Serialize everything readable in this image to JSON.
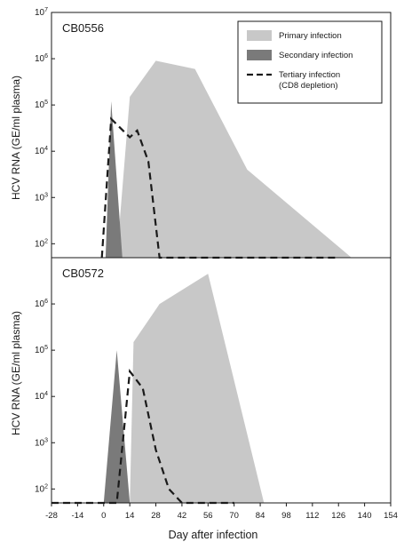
{
  "figure": {
    "xlabel": "Day after infection",
    "ylabel": "HCV RNA (GE/ml plasma)",
    "xticks": [
      -28,
      -14,
      0,
      14,
      28,
      42,
      56,
      70,
      84,
      98,
      112,
      126,
      140,
      154
    ],
    "colors": {
      "primary": "#c8c8c8",
      "secondary": "#7a7a7a",
      "tertiary": "#1a1a1a",
      "axis": "#1a1a1a"
    }
  },
  "chart_data": [
    {
      "type": "area",
      "panel_label": "CB0556",
      "xlabel": "Day after infection",
      "ylabel": "HCV RNA (GE/ml plasma)",
      "xlim": [
        -28,
        154
      ],
      "ylim": [
        50,
        10000000
      ],
      "yscale": "log",
      "yticks": [
        {
          "value": 100,
          "exp": "2"
        },
        {
          "value": 1000,
          "exp": "3"
        },
        {
          "value": 10000,
          "exp": "4"
        },
        {
          "value": 100000,
          "exp": "5"
        },
        {
          "value": 1000000,
          "exp": "6"
        },
        {
          "value": 10000000,
          "exp": "7"
        }
      ],
      "legend": {
        "placement": "top-right",
        "entries": [
          {
            "label": "Primary infection",
            "style": "primary"
          },
          {
            "label": "Secondary infection",
            "style": "secondary"
          },
          {
            "label": "Tertiary infection",
            "label2": "(CD8 depletion)",
            "style": "tertiary"
          }
        ]
      },
      "series": [
        {
          "name": "Primary infection",
          "style": "primary",
          "kind": "area",
          "x": [
            7,
            14,
            28,
            49,
            77,
            133
          ],
          "y": [
            50,
            150000,
            900000,
            600000,
            4000,
            50
          ]
        },
        {
          "name": "Secondary infection",
          "style": "secondary",
          "kind": "area",
          "x": [
            1,
            4,
            10
          ],
          "y": [
            50,
            120000,
            50
          ]
        },
        {
          "name": "Tertiary infection (CD8 depletion)",
          "style": "tertiary",
          "kind": "dashed",
          "x": [
            -1,
            4,
            14,
            18,
            24,
            30,
            36,
            42,
            56,
            70,
            84,
            98,
            112,
            126
          ],
          "y": [
            50,
            50000,
            20000,
            28000,
            6000,
            50,
            50,
            50,
            50,
            50,
            50,
            50,
            50,
            50
          ]
        }
      ]
    },
    {
      "type": "area",
      "panel_label": "CB0572",
      "xlabel": "Day after infection",
      "ylabel": "HCV RNA (GE/ml plasma)",
      "xlim": [
        -28,
        154
      ],
      "ylim": [
        50,
        10000000
      ],
      "yscale": "log",
      "yticks": [
        {
          "value": 100,
          "exp": "2"
        },
        {
          "value": 1000,
          "exp": "3"
        },
        {
          "value": 10000,
          "exp": "4"
        },
        {
          "value": 100000,
          "exp": "5"
        },
        {
          "value": 1000000,
          "exp": "6"
        }
      ],
      "series": [
        {
          "name": "Primary infection",
          "style": "primary",
          "kind": "area",
          "x": [
            14,
            16,
            30,
            56,
            86
          ],
          "y": [
            50,
            150000,
            1000000,
            4500000,
            50
          ]
        },
        {
          "name": "Secondary infection",
          "style": "secondary",
          "kind": "area",
          "x": [
            0,
            7,
            14
          ],
          "y": [
            50,
            100000,
            50
          ]
        },
        {
          "name": "Tertiary infection (CD8 depletion)",
          "style": "tertiary",
          "kind": "dashed",
          "x": [
            -28,
            0,
            7,
            14,
            21,
            28,
            35,
            42,
            49,
            56,
            63,
            70
          ],
          "y": [
            50,
            50,
            50,
            35000,
            15000,
            700,
            100,
            50,
            50,
            50,
            50,
            50
          ]
        }
      ]
    }
  ]
}
